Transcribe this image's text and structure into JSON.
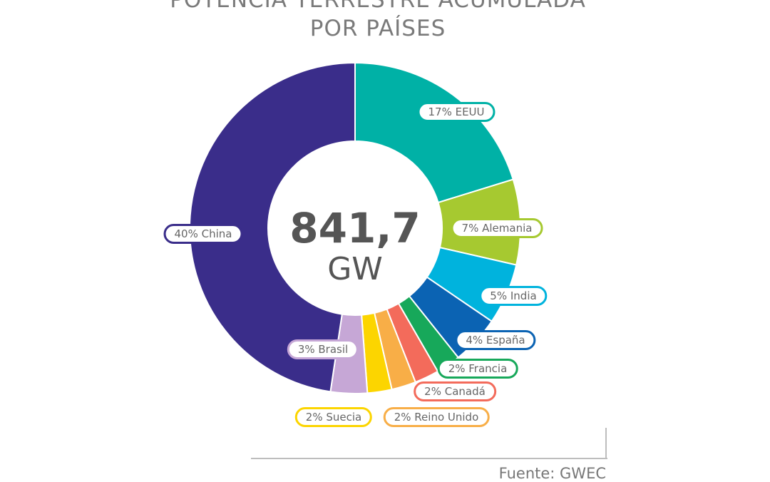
{
  "chart_data": {
    "type": "pie",
    "title": [
      "POTENCIA TERRESTRE ACUMULADA",
      "POR PAÍSES"
    ],
    "center_value": "841,7",
    "center_unit": "GW",
    "source": "Fuente: GWEC",
    "slices": [
      {
        "name": "EEUU",
        "value": 17,
        "label": "17% EEUU",
        "color": "#00b1a6"
      },
      {
        "name": "Alemania",
        "value": 7,
        "label": "7% Alemania",
        "color": "#a6c930"
      },
      {
        "name": "India",
        "value": 5,
        "label": "5% India",
        "color": "#00b3dd"
      },
      {
        "name": "España",
        "value": 4,
        "label": "4% España",
        "color": "#0b63b3"
      },
      {
        "name": "Francia",
        "value": 2,
        "label": "2% Francia",
        "color": "#17a85a"
      },
      {
        "name": "Canadá",
        "value": 2,
        "label": "2% Canadá",
        "color": "#f36b5b"
      },
      {
        "name": "Reino Unido",
        "value": 2,
        "label": "2% Reino Unido",
        "color": "#f8ae47"
      },
      {
        "name": "Suecia",
        "value": 2,
        "label": "2% Suecia",
        "color": "#fcd500"
      },
      {
        "name": "Brasil",
        "value": 3,
        "label": "3% Brasil",
        "color": "#c6a7d6"
      },
      {
        "name": "China",
        "value": 40,
        "label": "40% China",
        "color": "#3a2d8a"
      }
    ]
  }
}
